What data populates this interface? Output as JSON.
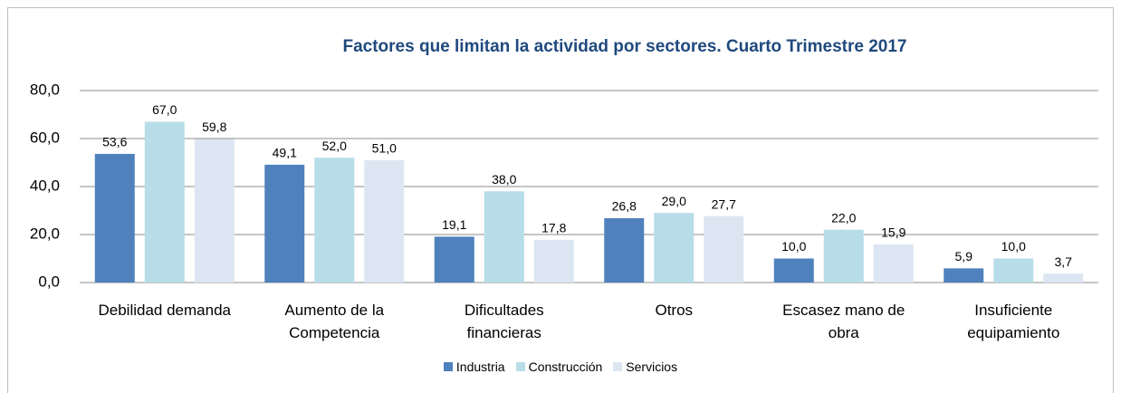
{
  "chart_data": {
    "type": "bar",
    "title": "Factores que limitan la actividad por sectores. Cuarto Trimestre 2017",
    "categories": [
      "Debilidad demanda",
      "Aumento de la Competencia",
      "Dificultades financieras",
      "Otros",
      "Escasez mano de obra",
      "Insuficiente equipamiento"
    ],
    "series": [
      {
        "name": "Industria",
        "color": "#4f81bd",
        "values": [
          53.6,
          49.1,
          19.1,
          26.8,
          10.0,
          5.9
        ],
        "value_labels": [
          "53,6",
          "49,1",
          "19,1",
          "26,8",
          "10,0",
          "5,9"
        ]
      },
      {
        "name": "Construcción",
        "color": "#b7dde8",
        "values": [
          67.0,
          52.0,
          38.0,
          29.0,
          22.0,
          10.0
        ],
        "value_labels": [
          "67,0",
          "52,0",
          "38,0",
          "29,0",
          "22,0",
          "10,0"
        ]
      },
      {
        "name": "Servicios",
        "color": "#dce6f2",
        "values": [
          59.8,
          51.0,
          17.8,
          27.7,
          15.9,
          3.7
        ],
        "value_labels": [
          "59,8",
          "51,0",
          "17,8",
          "27,7",
          "15,9",
          "3,7"
        ]
      }
    ],
    "ylim": [
      0,
      80
    ],
    "yticks": [
      {
        "value": 0,
        "label": "0,0"
      },
      {
        "value": 20,
        "label": "20,0"
      },
      {
        "value": 40,
        "label": "40,0"
      },
      {
        "value": 60,
        "label": "60,0"
      },
      {
        "value": 80,
        "label": "80,0"
      }
    ],
    "grid": true,
    "legend": "bottom"
  }
}
